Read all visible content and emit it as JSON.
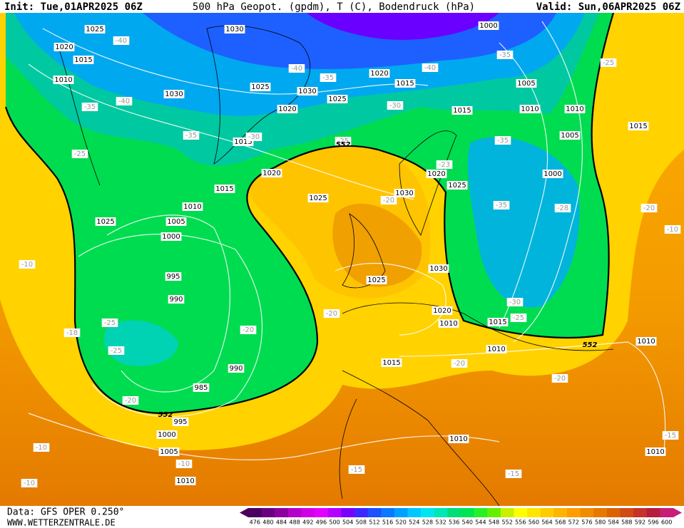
{
  "header": {
    "init": "Init: Tue,01APR2025 06Z",
    "title": "500 hPa Geopot. (gpdm), T (C), Bodendruck (hPa)",
    "valid": "Valid: Sun,06APR2025 06Z"
  },
  "footer": {
    "data": "Data: GFS OPER 0.250°",
    "site": "WWW.WETTERZENTRALE.DE"
  },
  "colorbar": {
    "labels": [
      476,
      480,
      484,
      488,
      492,
      496,
      500,
      504,
      508,
      512,
      516,
      520,
      524,
      528,
      532,
      536,
      540,
      544,
      548,
      552,
      556,
      560,
      564,
      568,
      572,
      576,
      580,
      584,
      588,
      592,
      596,
      600
    ],
    "colors": [
      "#4b0060",
      "#6a007f",
      "#8c00a0",
      "#b400c8",
      "#d200e6",
      "#e400ff",
      "#b400ff",
      "#7800ff",
      "#3c28ff",
      "#1e50ff",
      "#0a78ff",
      "#00a0ff",
      "#00c8ff",
      "#00e6f0",
      "#00e6b4",
      "#00dc78",
      "#00e650",
      "#28f028",
      "#64f000",
      "#c8f000",
      "#ffff00",
      "#ffe600",
      "#ffcc00",
      "#ffb400",
      "#ff9c00",
      "#f08c00",
      "#e87800",
      "#dc6400",
      "#d24b14",
      "#c83228",
      "#b41e3c",
      "#c81e78"
    ]
  },
  "map": {
    "isobar_labels": [
      1025,
      1030,
      1020,
      1015,
      1010,
      1030,
      1025,
      1030,
      1020,
      1025,
      1020,
      1015,
      1000,
      1005,
      1010,
      1010,
      1015,
      1005,
      1015,
      1000,
      1015,
      1020,
      1015,
      1025,
      1030,
      1020,
      1025,
      1010,
      1025,
      1005,
      1000,
      995,
      990,
      990,
      985,
      995,
      1000,
      1005,
      1010,
      1025,
      1030,
      1020,
      1010,
      1015,
      1010,
      1015,
      1010,
      1010,
      1010
    ],
    "temperature_labels": [
      -40,
      -35,
      -25,
      -40,
      -35,
      -40,
      -35,
      -40,
      -30,
      -35,
      -25,
      -30,
      -35,
      -25,
      -23,
      -28,
      -35,
      -20,
      -20,
      -10,
      -20,
      -30,
      -25,
      -25,
      -18,
      -25,
      -20,
      -20,
      -20,
      -20,
      -10,
      -10,
      -10,
      -15,
      -15,
      -15,
      -10
    ],
    "contour_552_labels": [
      552,
      552,
      552
    ]
  }
}
